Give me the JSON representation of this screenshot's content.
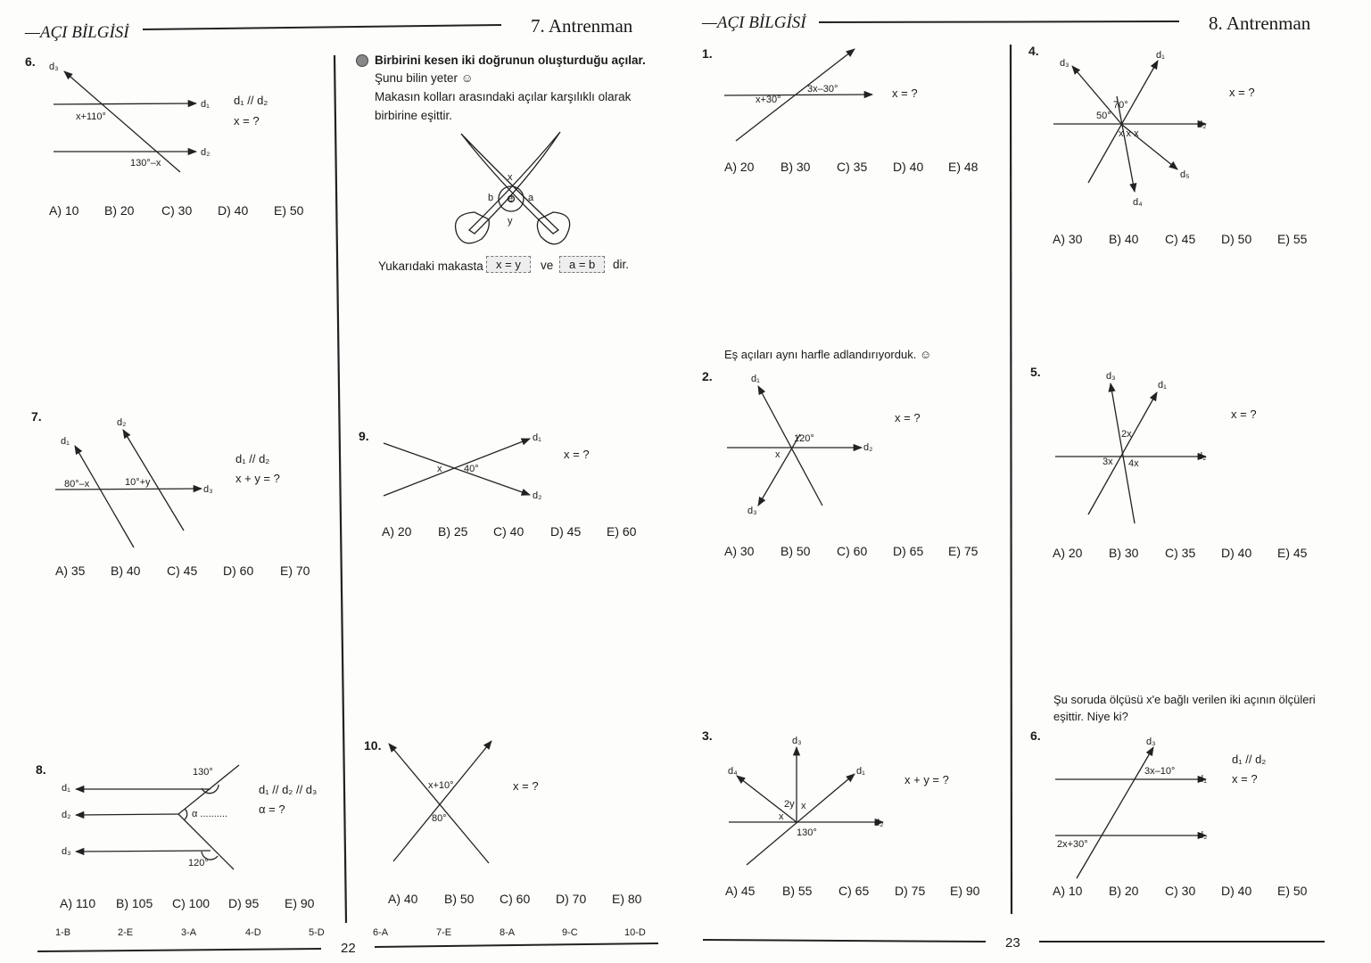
{
  "left_page": {
    "section": "—AÇI BİLGİSİ",
    "title": "7. Antrenman",
    "page_number": "22",
    "answer_key": [
      "1-B",
      "2-E",
      "3-A",
      "4-D",
      "5-D",
      "6-A",
      "7-E",
      "8-A",
      "9-C",
      "10-D"
    ],
    "info": {
      "heading": "Birbirini kesen iki doğrunun oluşturduğu açılar.",
      "line1": "Şunu bilin yeter ☺",
      "line2": "Makasın kolları arasındaki açılar karşılıklı olarak",
      "line3": "birbirine eşittir.",
      "labels": {
        "x": "x",
        "y": "y",
        "a": "a",
        "b": "b",
        "e": "e"
      },
      "sentence_start": "Yukarıdaki makasta",
      "box1": "x = y",
      "joiner": "ve",
      "box2": "a = b",
      "sentence_end": "dir."
    },
    "q6": {
      "number": "6.",
      "labels": {
        "d3": "d₃",
        "d1": "d₁",
        "d2": "d₂",
        "a1": "x+110°",
        "a2": "130°–x"
      },
      "given": "d₁ // d₂",
      "ask": "x = ?",
      "options": [
        "A) 10",
        "B) 20",
        "C) 30",
        "D) 40",
        "E) 50"
      ]
    },
    "q7": {
      "number": "7.",
      "labels": {
        "d1": "d₁",
        "d2": "d₂",
        "d3": "d₃",
        "a1": "80°–x",
        "a2": "10°+y"
      },
      "given": "d₁ // d₂",
      "ask": "x + y = ?",
      "options": [
        "A) 35",
        "B) 40",
        "C) 45",
        "D) 60",
        "E) 70"
      ]
    },
    "q8": {
      "number": "8.",
      "labels": {
        "d1": "d₁",
        "d2": "d₂",
        "d3": "d₃",
        "a1": "130°",
        "a2": "α ..........",
        "a3": "120°"
      },
      "given": "d₁ // d₂ // d₃",
      "ask": "α = ?",
      "options": [
        "A) 110",
        "B) 105",
        "C) 100",
        "D) 95",
        "E) 90"
      ]
    },
    "q9": {
      "number": "9.",
      "labels": {
        "d1": "d₁",
        "d2": "d₂",
        "a1": "x",
        "a2": "40°"
      },
      "ask": "x = ?",
      "options": [
        "A) 20",
        "B) 25",
        "C) 40",
        "D) 45",
        "E) 60"
      ]
    },
    "q10": {
      "number": "10.",
      "labels": {
        "a1": "x+10°",
        "a2": "80°"
      },
      "ask": "x = ?",
      "options": [
        "A) 40",
        "B) 50",
        "C) 60",
        "D) 70",
        "E) 80"
      ]
    }
  },
  "right_page": {
    "section": "—AÇI BİLGİSİ",
    "title": "8. Antrenman",
    "page_number": "23",
    "note1": "Eş açıları aynı harfle adlandırıyorduk. ☺",
    "note2_line1": "Şu soruda ölçüsü x'e bağlı verilen iki açının ölçüleri",
    "note2_line2": "eşittir. Niye ki?",
    "q1": {
      "number": "1.",
      "labels": {
        "a1": "x+30°",
        "a2": "3x–30°"
      },
      "ask": "x = ?",
      "options": [
        "A) 20",
        "B) 30",
        "C) 35",
        "D) 40",
        "E) 48"
      ]
    },
    "q2": {
      "number": "2.",
      "labels": {
        "d1": "d₁",
        "d2": "d₂",
        "d3": "d₃",
        "a1": "120°",
        "a2": "x"
      },
      "ask": "x = ?",
      "options": [
        "A) 30",
        "B) 50",
        "C) 60",
        "D) 65",
        "E) 75"
      ]
    },
    "q3": {
      "number": "3.",
      "labels": {
        "d1": "d₁",
        "d2": "d₂",
        "d3": "d₃",
        "d4": "d₄",
        "a1": "2y",
        "a2": "x",
        "a3": "x",
        "a4": "130°"
      },
      "ask": "x + y = ?",
      "options": [
        "A) 45",
        "B) 55",
        "C) 65",
        "D) 75",
        "E) 90"
      ]
    },
    "q4": {
      "number": "4.",
      "labels": {
        "d1": "d₁",
        "d2": "d₂",
        "d3": "d₃",
        "d4": "d₄",
        "d5": "d₅",
        "a1": "70°",
        "a2": "50°",
        "a3": "x x x"
      },
      "ask": "x = ?",
      "options": [
        "A) 30",
        "B) 40",
        "C) 45",
        "D) 50",
        "E) 55"
      ]
    },
    "q5": {
      "number": "5.",
      "labels": {
        "d1": "d₁",
        "d2": "d₂",
        "d3": "d₃",
        "a1": "2x",
        "a2": "3x",
        "a3": "4x"
      },
      "ask": "x = ?",
      "options": [
        "A) 20",
        "B) 30",
        "C) 35",
        "D) 40",
        "E) 45"
      ]
    },
    "q6": {
      "number": "6.",
      "labels": {
        "d1": "d₁",
        "d2": "d₂",
        "d3": "d₃",
        "a1": "3x–10°",
        "a2": "2x+30°"
      },
      "given": "d₁ // d₂",
      "ask": "x = ?",
      "options": [
        "A) 10",
        "B) 20",
        "C) 30",
        "D) 40",
        "E) 50"
      ]
    }
  }
}
